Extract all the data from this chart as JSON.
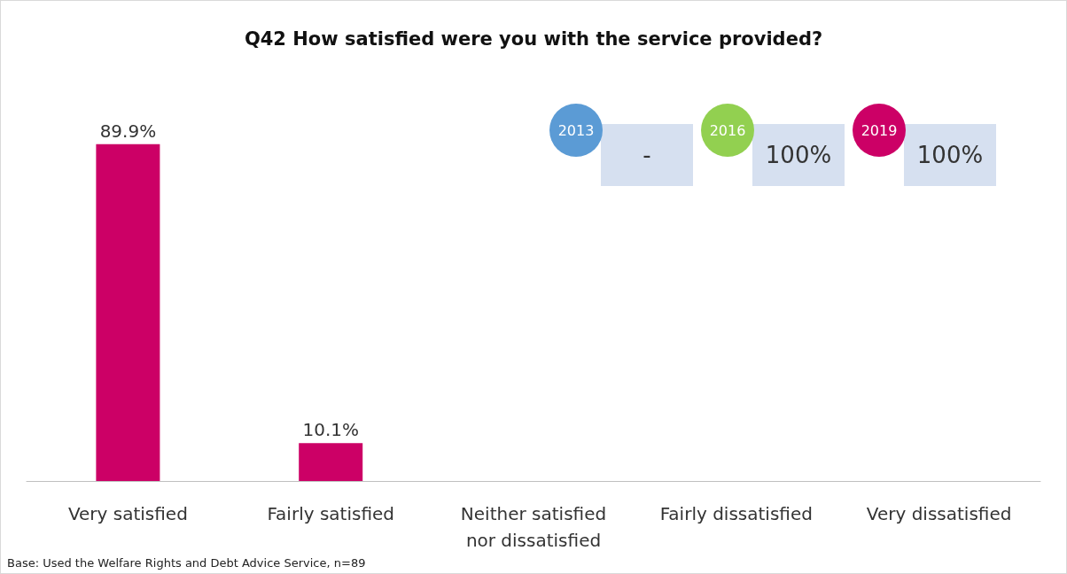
{
  "chart_data": {
    "type": "bar",
    "title": "Q42 How satisfied were you with the service provided?",
    "categories": [
      "Very satisfied",
      "Fairly satisfied",
      "Neither satisfied\nnor dissatisfied",
      "Fairly dissatisfied",
      "Very dissatisfied"
    ],
    "values": [
      89.9,
      10.1,
      null,
      null,
      null
    ],
    "color": "#cc0066",
    "value_labels": [
      "89.9%",
      "10.1%",
      null,
      null,
      null
    ],
    "grid": false,
    "annotations": [
      "2013",
      "-",
      "2016",
      "100%",
      "2019",
      "100%",
      "Base: Used the Welfare Rights and Debt Advice Service, n=89"
    ]
  }
}
